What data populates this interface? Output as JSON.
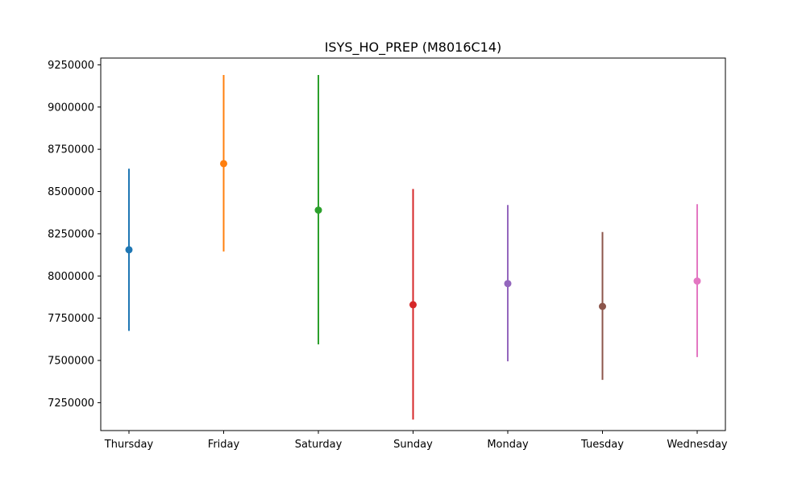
{
  "chart_data": {
    "type": "scatter",
    "title": "ISYS_HO_PREP (M8016C14)",
    "xlabel": "",
    "ylabel": "",
    "categories": [
      "Thursday",
      "Friday",
      "Saturday",
      "Sunday",
      "Monday",
      "Tuesday",
      "Wednesday"
    ],
    "series": [
      {
        "category": "Thursday",
        "mean": 8155000,
        "low": 7675000,
        "high": 8635000,
        "color": "#1f77b4"
      },
      {
        "category": "Friday",
        "mean": 8665000,
        "low": 8145000,
        "high": 9190000,
        "color": "#ff7f0e"
      },
      {
        "category": "Saturday",
        "mean": 8390000,
        "low": 7595000,
        "high": 9190000,
        "color": "#2ca02c"
      },
      {
        "category": "Sunday",
        "mean": 7830000,
        "low": 7150000,
        "high": 8515000,
        "color": "#d62728"
      },
      {
        "category": "Monday",
        "mean": 7955000,
        "low": 7495000,
        "high": 8420000,
        "color": "#9467bd"
      },
      {
        "category": "Tuesday",
        "mean": 7820000,
        "low": 7385000,
        "high": 8260000,
        "color": "#8c564b"
      },
      {
        "category": "Wednesday",
        "mean": 7970000,
        "low": 7520000,
        "high": 8425000,
        "color": "#e377c2"
      }
    ],
    "yticks": [
      7250000,
      7500000,
      7750000,
      8000000,
      8250000,
      8500000,
      8750000,
      9000000,
      9250000
    ],
    "ytick_labels": [
      "7250000",
      "7500000",
      "7750000",
      "8000000",
      "8250000",
      "8500000",
      "8750000",
      "9000000",
      "9250000"
    ],
    "ylim": [
      7085000,
      9290000
    ],
    "grid": false,
    "legend": "none"
  }
}
